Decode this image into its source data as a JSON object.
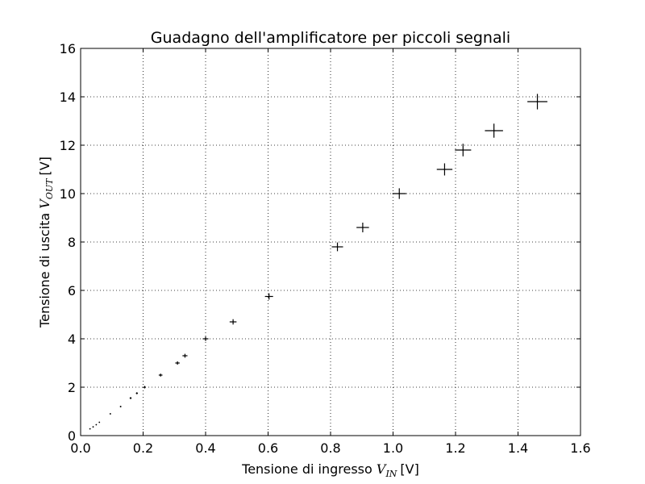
{
  "chart_data": {
    "type": "scatter",
    "title": "Guadagno dell'amplificatore per piccoli segnali",
    "xlabel": {
      "prefix": "Tensione di ingresso ",
      "symbol": "V",
      "subscript": "IN",
      "unit": "[V]"
    },
    "ylabel": {
      "prefix": "Tensione di uscita ",
      "symbol": "V",
      "subscript": "OUT",
      "unit": "[V]"
    },
    "xlim": [
      0,
      1.6
    ],
    "ylim": [
      0,
      16
    ],
    "xticks": [
      "0.0",
      "0.2",
      "0.4",
      "0.6",
      "0.8",
      "1.0",
      "1.2",
      "1.4",
      "1.6"
    ],
    "yticks": [
      "0",
      "2",
      "4",
      "6",
      "8",
      "10",
      "12",
      "14",
      "16"
    ],
    "grid": true,
    "series": [
      {
        "points": [
          {
            "x": 0.03,
            "y": 0.28,
            "xerr": 0.001,
            "yerr": 0.01
          },
          {
            "x": 0.04,
            "y": 0.36,
            "xerr": 0.001,
            "yerr": 0.01
          },
          {
            "x": 0.05,
            "y": 0.45,
            "xerr": 0.001,
            "yerr": 0.01
          },
          {
            "x": 0.06,
            "y": 0.55,
            "xerr": 0.001,
            "yerr": 0.01
          },
          {
            "x": 0.095,
            "y": 0.9,
            "xerr": 0.002,
            "yerr": 0.02
          },
          {
            "x": 0.128,
            "y": 1.2,
            "xerr": 0.002,
            "yerr": 0.03
          },
          {
            "x": 0.16,
            "y": 1.55,
            "xerr": 0.003,
            "yerr": 0.04
          },
          {
            "x": 0.18,
            "y": 1.75,
            "xerr": 0.003,
            "yerr": 0.04
          },
          {
            "x": 0.205,
            "y": 2.0,
            "xerr": 0.004,
            "yerr": 0.05
          },
          {
            "x": 0.256,
            "y": 2.5,
            "xerr": 0.006,
            "yerr": 0.06
          },
          {
            "x": 0.31,
            "y": 3.0,
            "xerr": 0.007,
            "yerr": 0.07
          },
          {
            "x": 0.334,
            "y": 3.3,
            "xerr": 0.008,
            "yerr": 0.08
          },
          {
            "x": 0.4,
            "y": 4.0,
            "xerr": 0.009,
            "yerr": 0.09
          },
          {
            "x": 0.488,
            "y": 4.7,
            "xerr": 0.011,
            "yerr": 0.11
          },
          {
            "x": 0.603,
            "y": 5.75,
            "xerr": 0.013,
            "yerr": 0.13
          },
          {
            "x": 0.822,
            "y": 7.8,
            "xerr": 0.018,
            "yerr": 0.18
          },
          {
            "x": 0.903,
            "y": 8.6,
            "xerr": 0.02,
            "yerr": 0.2
          },
          {
            "x": 1.02,
            "y": 10.0,
            "xerr": 0.022,
            "yerr": 0.22
          },
          {
            "x": 1.165,
            "y": 11.0,
            "xerr": 0.025,
            "yerr": 0.25
          },
          {
            "x": 1.224,
            "y": 11.8,
            "xerr": 0.026,
            "yerr": 0.26
          },
          {
            "x": 1.323,
            "y": 12.6,
            "xerr": 0.029,
            "yerr": 0.29
          },
          {
            "x": 1.462,
            "y": 13.8,
            "xerr": 0.032,
            "yerr": 0.32
          }
        ]
      }
    ]
  }
}
